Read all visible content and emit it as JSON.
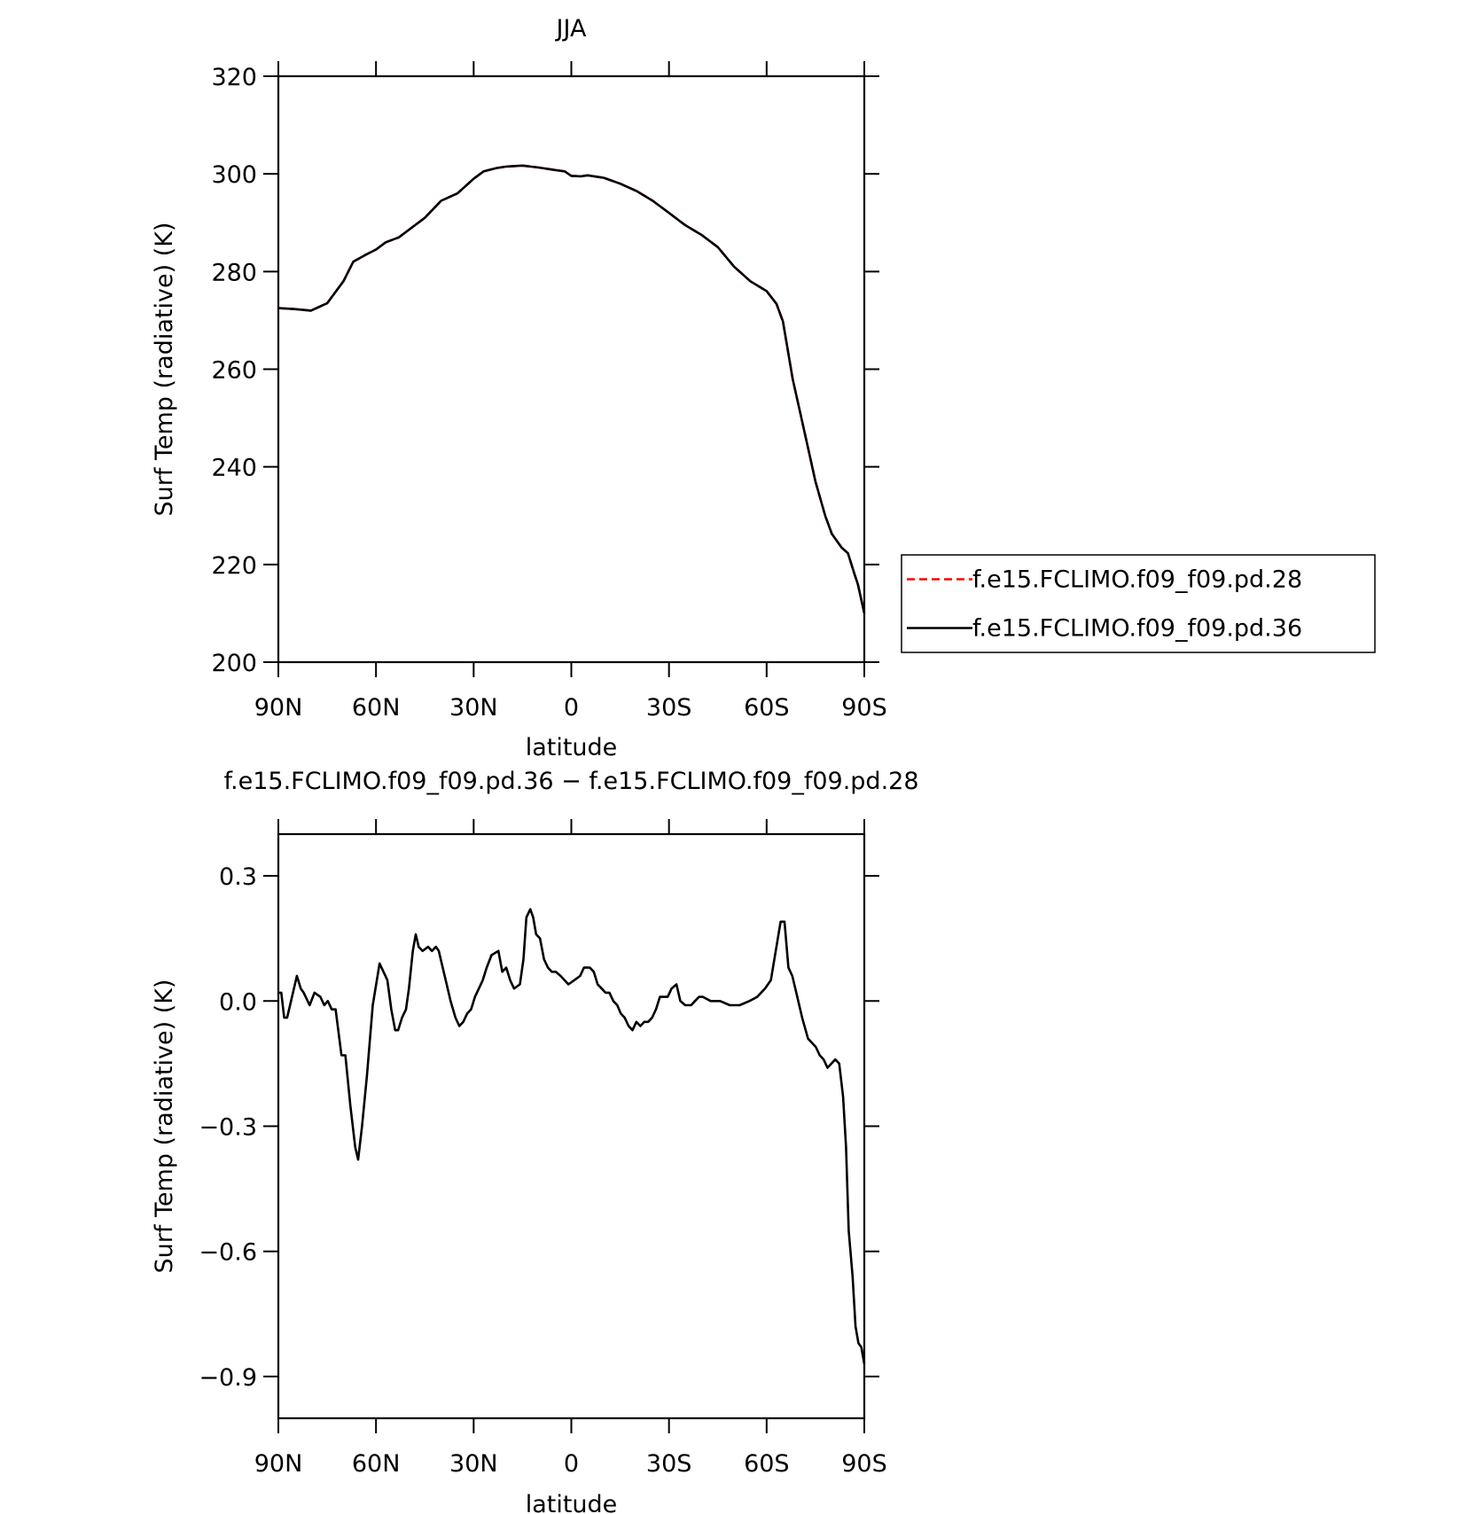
{
  "chart_data": [
    {
      "type": "line",
      "title": "JJA",
      "ylabel": "Surf Temp (radiative) (K)",
      "xlabel": "latitude",
      "x": [
        90,
        85,
        80,
        75,
        70,
        67,
        63,
        60,
        57,
        53,
        50,
        45,
        40,
        35,
        30,
        27,
        23,
        20,
        15,
        10,
        5,
        2,
        0,
        -3,
        -5,
        -10,
        -15,
        -20,
        -25,
        -30,
        -35,
        -40,
        -45,
        -50,
        -55,
        -60,
        -63,
        -65,
        -68,
        -70,
        -73,
        -75,
        -78,
        -80,
        -83,
        -85,
        -87,
        -88,
        -90
      ],
      "series": [
        {
          "name": "f.e15.FCLIMO.f09_f09.pd.28",
          "color": "#ff0000",
          "linestyle": "dashed",
          "values": [
            272.5,
            272.3,
            272,
            273.5,
            278,
            282,
            283.5,
            284.5,
            286,
            287,
            288.5,
            291,
            294.5,
            296,
            299,
            300.5,
            301.2,
            301.5,
            301.7,
            301.3,
            300.8,
            300.5,
            299.6,
            299.5,
            299.7,
            299.2,
            298,
            296.5,
            294.5,
            292,
            289.5,
            287.5,
            285,
            281,
            278,
            276,
            273.4,
            269.8,
            258,
            252,
            243,
            237,
            230,
            226.3,
            223.5,
            222.3,
            218,
            216,
            210
          ]
        },
        {
          "name": "f.e15.FCLIMO.f09_f09.pd.36",
          "color": "#000000",
          "linestyle": "solid",
          "values": [
            272.5,
            272.3,
            272,
            273.5,
            278,
            282,
            283.5,
            284.5,
            286,
            287,
            288.5,
            291,
            294.5,
            296,
            299,
            300.5,
            301.2,
            301.5,
            301.7,
            301.3,
            300.8,
            300.5,
            299.6,
            299.5,
            299.7,
            299.2,
            298,
            296.5,
            294.5,
            292,
            289.5,
            287.5,
            285,
            281,
            278,
            276,
            273.4,
            269.8,
            258,
            252,
            243,
            237,
            230,
            226.3,
            223.5,
            222.3,
            218,
            216,
            210
          ]
        }
      ],
      "xlim": [
        90,
        -90
      ],
      "xticks": [
        {
          "value": 90,
          "label": "90N"
        },
        {
          "value": 60,
          "label": "60N"
        },
        {
          "value": 30,
          "label": "30N"
        },
        0,
        {
          "value": -30,
          "label": "30S"
        },
        {
          "value": -60,
          "label": "60S"
        },
        {
          "value": -90,
          "label": "90S"
        }
      ],
      "ylim": [
        200,
        320
      ],
      "yticks": [
        200,
        220,
        240,
        260,
        280,
        300,
        320
      ],
      "legend": "right"
    },
    {
      "type": "line",
      "title": "f.e15.FCLIMO.f09_f09.pd.36 − f.e15.FCLIMO.f09_f09.pd.28",
      "ylabel": "Surf Temp (radiative) (K)",
      "xlabel": "latitude",
      "x": [
        90,
        89.1,
        88.2,
        87.3,
        86.1,
        84.3,
        83.1,
        82.2,
        80.4,
        78.9,
        77.1,
        75.9,
        74.8,
        73.6,
        72.4,
        70.6,
        69.4,
        67.9,
        66.4,
        65.5,
        64.3,
        62.8,
        61.0,
        58.9,
        57.7,
        56.5,
        55.3,
        54.1,
        53.2,
        52.0,
        50.8,
        49.9,
        48.7,
        47.8,
        46.9,
        45.7,
        44.0,
        42.8,
        41.6,
        40.7,
        39.5,
        38.3,
        37.1,
        35.6,
        34.4,
        33.2,
        32.0,
        30.8,
        29.6,
        28.4,
        27.2,
        26.0,
        24.5,
        22.4,
        21.2,
        20.0,
        18.8,
        17.6,
        15.8,
        14.7,
        13.8,
        12.6,
        11.7,
        10.8,
        9.6,
        8.4,
        7.2,
        6.0,
        4.8,
        3.3,
        2.1,
        0.9,
        -0.9,
        -2.7,
        -3.9,
        -5.7,
        -6.9,
        -8.1,
        -9.3,
        -10.5,
        -11.7,
        -12.9,
        -14.1,
        -15.2,
        -16.4,
        -17.6,
        -18.8,
        -20.0,
        -21.2,
        -22.4,
        -23.6,
        -24.8,
        -26.0,
        -27.2,
        -28.4,
        -29.6,
        -30.8,
        -32.3,
        -33.5,
        -35.0,
        -36.8,
        -38.0,
        -39.2,
        -40.4,
        -42.8,
        -45.7,
        -48.7,
        -51.7,
        -54.7,
        -57.1,
        -59.5,
        -61.3,
        -62.8,
        -64.3,
        -65.5,
        -66.7,
        -67.9,
        -69.1,
        -70.9,
        -72.7,
        -73.9,
        -75.1,
        -76.3,
        -77.5,
        -78.7,
        -79.9,
        -81.1,
        -82.3,
        -83.5,
        -84.4,
        -85.2,
        -86.4,
        -87.3,
        -88.2,
        -89.1,
        -90
      ],
      "values": [
        0.02,
        0.02,
        -0.04,
        -0.04,
        0.0,
        0.06,
        0.03,
        0.02,
        -0.01,
        0.02,
        0.01,
        -0.01,
        0.0,
        -0.02,
        -0.02,
        -0.13,
        -0.13,
        -0.25,
        -0.35,
        -0.38,
        -0.3,
        -0.18,
        -0.01,
        0.09,
        0.07,
        0.05,
        -0.02,
        -0.07,
        -0.07,
        -0.04,
        -0.02,
        0.03,
        0.12,
        0.16,
        0.13,
        0.12,
        0.13,
        0.12,
        0.13,
        0.12,
        0.08,
        0.04,
        0.0,
        -0.04,
        -0.06,
        -0.05,
        -0.03,
        -0.02,
        0.01,
        0.03,
        0.05,
        0.08,
        0.11,
        0.12,
        0.07,
        0.08,
        0.05,
        0.03,
        0.04,
        0.1,
        0.2,
        0.22,
        0.2,
        0.16,
        0.15,
        0.1,
        0.08,
        0.07,
        0.07,
        0.06,
        0.05,
        0.04,
        0.05,
        0.06,
        0.08,
        0.08,
        0.07,
        0.04,
        0.03,
        0.02,
        0.02,
        0.0,
        -0.01,
        -0.03,
        -0.04,
        -0.06,
        -0.07,
        -0.05,
        -0.06,
        -0.05,
        -0.05,
        -0.04,
        -0.02,
        0.01,
        0.01,
        0.01,
        0.03,
        0.04,
        0.0,
        -0.01,
        -0.01,
        0.0,
        0.01,
        0.01,
        0.0,
        0.0,
        -0.01,
        -0.01,
        0.0,
        0.01,
        0.03,
        0.05,
        0.12,
        0.19,
        0.19,
        0.08,
        0.06,
        0.02,
        -0.04,
        -0.09,
        -0.1,
        -0.11,
        -0.13,
        -0.14,
        -0.16,
        -0.15,
        -0.14,
        -0.15,
        -0.23,
        -0.35,
        -0.55,
        -0.66,
        -0.78,
        -0.82,
        -0.83,
        -0.87
      ],
      "color": "#000000",
      "xlim": [
        90,
        -90
      ],
      "xticks": [
        {
          "value": 90,
          "label": "90N"
        },
        {
          "value": 60,
          "label": "60N"
        },
        {
          "value": 30,
          "label": "30N"
        },
        0,
        {
          "value": -30,
          "label": "30S"
        },
        {
          "value": -60,
          "label": "60S"
        },
        {
          "value": -90,
          "label": "90S"
        }
      ],
      "ylim": [
        -1.0,
        0.4
      ],
      "yticks": [
        {
          "value": -0.9,
          "label": "−0.9"
        },
        {
          "value": -0.6,
          "label": "−0.6"
        },
        {
          "value": -0.3,
          "label": "−0.3"
        },
        {
          "value": 0,
          "label": "0.0"
        },
        0.3
      ]
    }
  ]
}
